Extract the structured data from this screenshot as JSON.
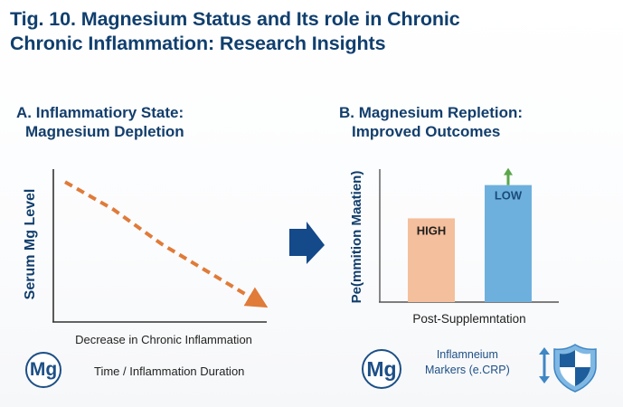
{
  "figure": {
    "title_line1": "Tig. 10. Magnesium Status and Its role in Chronic",
    "title_line2": "Chronic Inflammation: Research Insights"
  },
  "panels": {
    "a": {
      "title_line1": "A. Inflammatiory State:",
      "title_line2": "Magnesium Depletion",
      "footer_label": "Time / Inflammation Duration",
      "badge": "Mg"
    },
    "b": {
      "title_line1": "B. Magnesium Repletion:",
      "title_line2": "Improved Outcomes",
      "badge": "Mg",
      "markers_line1": "Inflamneium",
      "markers_line2": "Markers (e.CRP)"
    }
  },
  "icons": {
    "arrow": "right-arrow-icon",
    "up_arrow": "up-arrow-icon",
    "updown": "up-down-arrow-icon",
    "shield": "shield-icon"
  },
  "colors": {
    "title": "#103f6e",
    "trend": "#e07b39",
    "bar_high": "#f4bf9c",
    "bar_low": "#6eb0dd",
    "up_arrow": "#5aa64b",
    "accent": "#14498a"
  },
  "chart_data": [
    {
      "type": "line",
      "title": "A. Inflammatiory State: Magnesium Depletion",
      "xlabel": "Decrease in Chronic Inflammation",
      "ylabel": "Serum Mg Level",
      "x": [
        0,
        0.25,
        0.5,
        0.75,
        1.0
      ],
      "y": [
        0.93,
        0.74,
        0.5,
        0.3,
        0.1
      ],
      "xlim": [
        0,
        1
      ],
      "ylim": [
        0,
        1
      ],
      "style": "dashed-arrow",
      "grid": false
    },
    {
      "type": "bar",
      "title": "B. Magnesium Repletion: Improved Outcomes",
      "xlabel": "Post-Supplemntation",
      "ylabel": "Pe(mmition Maatien)",
      "categories": [
        "HIGH",
        "LOW"
      ],
      "values": [
        0.63,
        0.88
      ],
      "ylim": [
        0,
        1
      ],
      "grid": false
    }
  ]
}
